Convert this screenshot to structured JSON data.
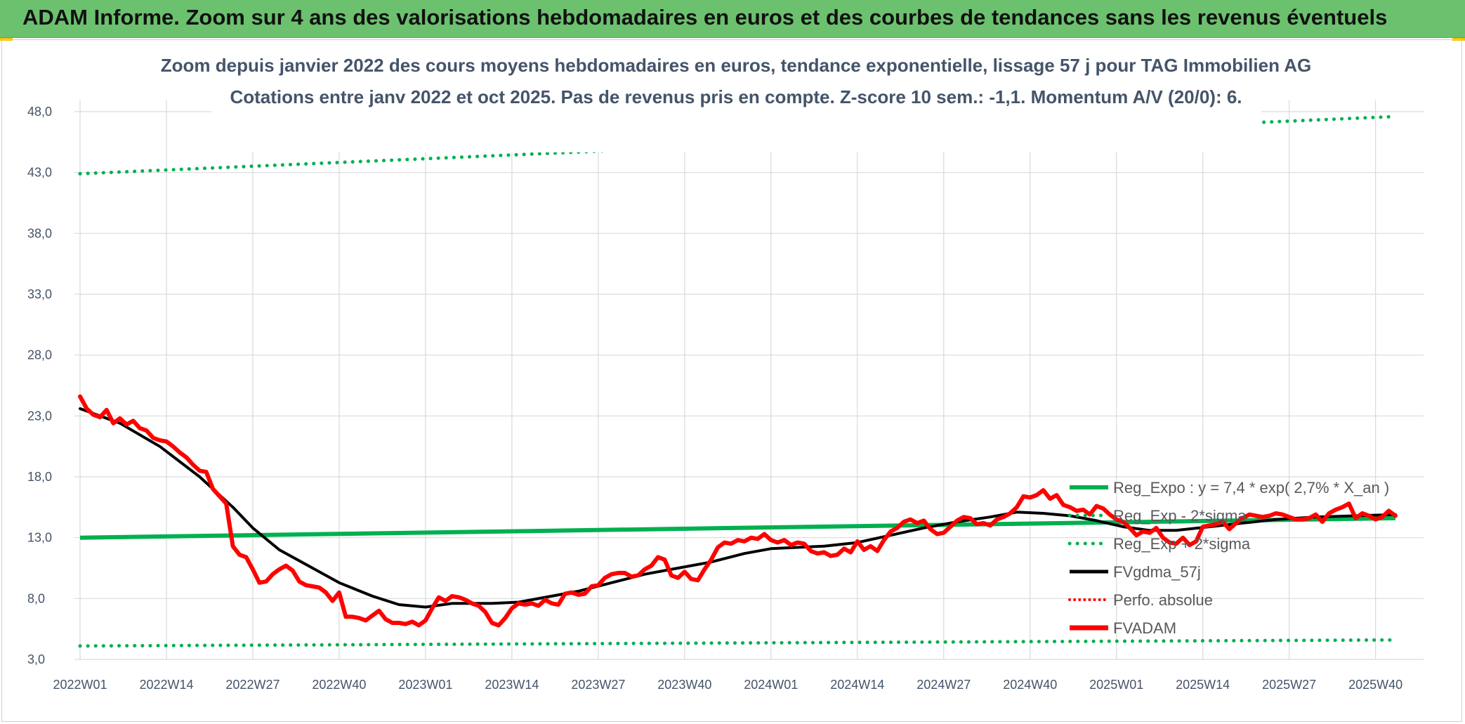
{
  "header": {
    "title": "ADAM Informe. Zoom sur 4 ans des valorisations hebdomadaires en euros et des courbes de tendances sans les revenus éventuels"
  },
  "chart_data": {
    "type": "line",
    "title_line1": "Zoom depuis janvier 2022 des cours moyens hebdomadaires en euros, tendance exponentielle, lissage 57 j pour TAG Immobilien AG",
    "title_line2": "Cotations entre janv 2022 et oct 2025. Pas de revenus pris en compte. Z-score 10 sem.: -1,1. Momentum A/V (20/0): 6.",
    "ylim": [
      3.0,
      48.0
    ],
    "yticks": [
      "48,0",
      "43,0",
      "38,0",
      "33,0",
      "28,0",
      "23,0",
      "18,0",
      "13,0",
      "8,0",
      "3,0"
    ],
    "ytick_values": [
      48,
      43,
      38,
      33,
      28,
      23,
      18,
      13,
      8,
      3
    ],
    "xticks": [
      "2022W01",
      "2022W14",
      "2022W27",
      "2022W40",
      "2023W01",
      "2023W14",
      "2023W27",
      "2023W40",
      "2024W01",
      "2024W14",
      "2024W27",
      "2024W40",
      "2025W01",
      "2025W14",
      "2025W27",
      "2025W40"
    ],
    "xtick_index": [
      0,
      13,
      26,
      39,
      52,
      65,
      78,
      91,
      104,
      117,
      130,
      143,
      156,
      169,
      182,
      195
    ],
    "n_weeks": 199,
    "legend": {
      "position": "right-lower",
      "entries": [
        "Reg_Expo : y = 7,4 * exp( 2,7% *  X_an )",
        "Reg_Exp - 2*sigma",
        "Reg_Exp + 2*sigma",
        "FVgdma_57j",
        "Perfo. absolue",
        "FVADAM"
      ]
    },
    "colors": {
      "reg_expo": "#00b050",
      "reg_sigma": "#00b050",
      "fvgdma": "#000000",
      "perfo": "#ff0000",
      "fvadam": "#ff0000",
      "grid": "#d9d9d9"
    },
    "series": [
      {
        "name": "Reg_Expo",
        "points": [
          [
            0,
            13.0
          ],
          [
            198,
            14.6
          ]
        ]
      },
      {
        "name": "Reg_Exp - 2*sigma",
        "points": [
          [
            0,
            4.1
          ],
          [
            198,
            4.6
          ]
        ]
      },
      {
        "name": "Reg_Exp + 2*sigma",
        "points": [
          [
            0,
            42.9
          ],
          [
            198,
            47.6
          ]
        ]
      },
      {
        "name": "FVgdma_57j",
        "points": [
          [
            0,
            23.6
          ],
          [
            6,
            22.4
          ],
          [
            12,
            20.5
          ],
          [
            18,
            18.0
          ],
          [
            23,
            15.5
          ],
          [
            26,
            13.8
          ],
          [
            30,
            12.0
          ],
          [
            34,
            10.8
          ],
          [
            39,
            9.3
          ],
          [
            44,
            8.2
          ],
          [
            48,
            7.5
          ],
          [
            52,
            7.3
          ],
          [
            56,
            7.6
          ],
          [
            62,
            7.6
          ],
          [
            66,
            7.7
          ],
          [
            70,
            8.1
          ],
          [
            75,
            8.6
          ],
          [
            80,
            9.3
          ],
          [
            85,
            10.0
          ],
          [
            90,
            10.5
          ],
          [
            95,
            11.0
          ],
          [
            100,
            11.7
          ],
          [
            104,
            12.1
          ],
          [
            108,
            12.2
          ],
          [
            112,
            12.3
          ],
          [
            117,
            12.6
          ],
          [
            122,
            13.2
          ],
          [
            127,
            13.8
          ],
          [
            132,
            14.3
          ],
          [
            137,
            14.7
          ],
          [
            141,
            15.1
          ],
          [
            145,
            15.0
          ],
          [
            149,
            14.8
          ],
          [
            153,
            14.4
          ],
          [
            157,
            13.9
          ],
          [
            161,
            13.6
          ],
          [
            165,
            13.6
          ],
          [
            170,
            13.9
          ],
          [
            175,
            14.2
          ],
          [
            180,
            14.5
          ],
          [
            186,
            14.7
          ],
          [
            192,
            14.8
          ],
          [
            198,
            14.9
          ]
        ]
      },
      {
        "name": "FVADAM",
        "points": [
          [
            0,
            24.6
          ],
          [
            1,
            23.6
          ],
          [
            2,
            23.1
          ],
          [
            3,
            22.9
          ],
          [
            4,
            23.5
          ],
          [
            5,
            22.4
          ],
          [
            6,
            22.8
          ],
          [
            7,
            22.3
          ],
          [
            8,
            22.6
          ],
          [
            9,
            22.0
          ],
          [
            10,
            21.8
          ],
          [
            11,
            21.2
          ],
          [
            12,
            21.0
          ],
          [
            13,
            20.9
          ],
          [
            14,
            20.5
          ],
          [
            15,
            20.0
          ],
          [
            16,
            19.6
          ],
          [
            17,
            19.0
          ],
          [
            18,
            18.5
          ],
          [
            19,
            18.4
          ],
          [
            20,
            17.0
          ],
          [
            21,
            16.4
          ],
          [
            22,
            15.8
          ],
          [
            23,
            12.3
          ],
          [
            24,
            11.6
          ],
          [
            25,
            11.4
          ],
          [
            26,
            10.4
          ],
          [
            27,
            9.3
          ],
          [
            28,
            9.4
          ],
          [
            29,
            10.0
          ],
          [
            30,
            10.4
          ],
          [
            31,
            10.7
          ],
          [
            32,
            10.3
          ],
          [
            33,
            9.4
          ],
          [
            34,
            9.1
          ],
          [
            35,
            9.0
          ],
          [
            36,
            8.9
          ],
          [
            37,
            8.5
          ],
          [
            38,
            7.8
          ],
          [
            39,
            8.5
          ],
          [
            40,
            6.5
          ],
          [
            41,
            6.5
          ],
          [
            42,
            6.4
          ],
          [
            43,
            6.2
          ],
          [
            44,
            6.6
          ],
          [
            45,
            7.0
          ],
          [
            46,
            6.3
          ],
          [
            47,
            6.0
          ],
          [
            48,
            6.0
          ],
          [
            49,
            5.9
          ],
          [
            50,
            6.1
          ],
          [
            51,
            5.8
          ],
          [
            52,
            6.2
          ],
          [
            53,
            7.2
          ],
          [
            54,
            8.1
          ],
          [
            55,
            7.8
          ],
          [
            56,
            8.2
          ],
          [
            57,
            8.1
          ],
          [
            58,
            7.9
          ],
          [
            59,
            7.6
          ],
          [
            60,
            7.4
          ],
          [
            61,
            6.9
          ],
          [
            62,
            6.0
          ],
          [
            63,
            5.8
          ],
          [
            64,
            6.4
          ],
          [
            65,
            7.2
          ],
          [
            66,
            7.6
          ],
          [
            67,
            7.5
          ],
          [
            68,
            7.6
          ],
          [
            69,
            7.4
          ],
          [
            70,
            7.9
          ],
          [
            71,
            7.6
          ],
          [
            72,
            7.5
          ],
          [
            73,
            8.4
          ],
          [
            74,
            8.5
          ],
          [
            75,
            8.3
          ],
          [
            76,
            8.4
          ],
          [
            77,
            9.0
          ],
          [
            78,
            9.1
          ],
          [
            79,
            9.7
          ],
          [
            80,
            10.0
          ],
          [
            81,
            10.1
          ],
          [
            82,
            10.1
          ],
          [
            83,
            9.8
          ],
          [
            84,
            9.9
          ],
          [
            85,
            10.4
          ],
          [
            86,
            10.7
          ],
          [
            87,
            11.4
          ],
          [
            88,
            11.2
          ],
          [
            89,
            9.9
          ],
          [
            90,
            9.7
          ],
          [
            91,
            10.2
          ],
          [
            92,
            9.6
          ],
          [
            93,
            9.5
          ],
          [
            94,
            10.4
          ],
          [
            95,
            11.2
          ],
          [
            96,
            12.2
          ],
          [
            97,
            12.6
          ],
          [
            98,
            12.5
          ],
          [
            99,
            12.8
          ],
          [
            100,
            12.7
          ],
          [
            101,
            13.0
          ],
          [
            102,
            12.9
          ],
          [
            103,
            13.3
          ],
          [
            104,
            12.8
          ],
          [
            105,
            12.6
          ],
          [
            106,
            12.8
          ],
          [
            107,
            12.4
          ],
          [
            108,
            12.6
          ],
          [
            109,
            12.5
          ],
          [
            110,
            11.9
          ],
          [
            111,
            11.7
          ],
          [
            112,
            11.8
          ],
          [
            113,
            11.5
          ],
          [
            114,
            11.6
          ],
          [
            115,
            12.1
          ],
          [
            116,
            11.8
          ],
          [
            117,
            12.7
          ],
          [
            118,
            12.0
          ],
          [
            119,
            12.3
          ],
          [
            120,
            11.9
          ],
          [
            121,
            12.8
          ],
          [
            122,
            13.5
          ],
          [
            123,
            13.8
          ],
          [
            124,
            14.3
          ],
          [
            125,
            14.5
          ],
          [
            126,
            14.2
          ],
          [
            127,
            14.4
          ],
          [
            128,
            13.7
          ],
          [
            129,
            13.3
          ],
          [
            130,
            13.4
          ],
          [
            131,
            13.9
          ],
          [
            132,
            14.4
          ],
          [
            133,
            14.7
          ],
          [
            134,
            14.6
          ],
          [
            135,
            14.1
          ],
          [
            136,
            14.2
          ],
          [
            137,
            14.0
          ],
          [
            138,
            14.5
          ],
          [
            139,
            14.7
          ],
          [
            140,
            15.0
          ],
          [
            141,
            15.5
          ],
          [
            142,
            16.4
          ],
          [
            143,
            16.3
          ],
          [
            144,
            16.5
          ],
          [
            145,
            16.9
          ],
          [
            146,
            16.2
          ],
          [
            147,
            16.5
          ],
          [
            148,
            15.7
          ],
          [
            149,
            15.5
          ],
          [
            150,
            15.2
          ],
          [
            151,
            15.3
          ],
          [
            152,
            14.9
          ],
          [
            153,
            15.6
          ],
          [
            154,
            15.4
          ],
          [
            155,
            14.9
          ],
          [
            156,
            14.5
          ],
          [
            157,
            14.3
          ],
          [
            158,
            13.8
          ],
          [
            159,
            13.2
          ],
          [
            160,
            13.5
          ],
          [
            161,
            13.4
          ],
          [
            162,
            13.8
          ],
          [
            163,
            13.0
          ],
          [
            164,
            12.6
          ],
          [
            165,
            12.5
          ],
          [
            166,
            13.0
          ],
          [
            167,
            12.4
          ],
          [
            168,
            12.7
          ],
          [
            169,
            13.9
          ],
          [
            170,
            14.0
          ],
          [
            171,
            14.1
          ],
          [
            172,
            14.3
          ],
          [
            173,
            13.7
          ],
          [
            174,
            14.2
          ],
          [
            175,
            14.6
          ],
          [
            176,
            14.9
          ],
          [
            177,
            14.8
          ],
          [
            178,
            14.7
          ],
          [
            179,
            14.8
          ],
          [
            180,
            15.0
          ],
          [
            181,
            14.9
          ],
          [
            182,
            14.7
          ],
          [
            183,
            14.5
          ],
          [
            184,
            14.5
          ],
          [
            185,
            14.6
          ],
          [
            186,
            14.9
          ],
          [
            187,
            14.3
          ],
          [
            188,
            15.0
          ],
          [
            189,
            15.3
          ],
          [
            190,
            15.5
          ],
          [
            191,
            15.8
          ],
          [
            192,
            14.6
          ],
          [
            193,
            15.0
          ],
          [
            194,
            14.8
          ],
          [
            195,
            14.5
          ],
          [
            196,
            14.7
          ],
          [
            197,
            15.2
          ],
          [
            198,
            14.8
          ]
        ]
      }
    ]
  }
}
